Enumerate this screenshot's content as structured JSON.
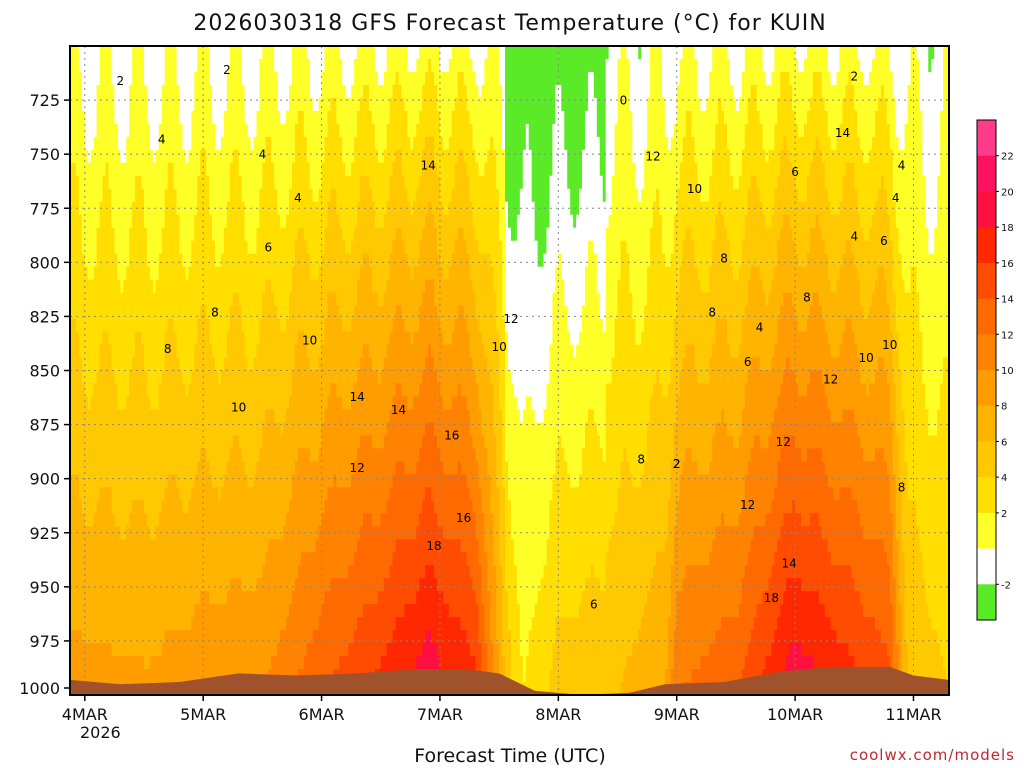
{
  "chart_data": {
    "type": "heatmap",
    "title": "2026030318 GFS Forecast Temperature (°C) for KUIN",
    "xlabel": "Forecast Time (UTC)",
    "ylabel": "",
    "credit": "coolwx.com/models",
    "x_ticks": [
      "4MAR",
      "5MAR",
      "6MAR",
      "7MAR",
      "8MAR",
      "9MAR",
      "10MAR",
      "11MAR"
    ],
    "x_tick_sub": "2026",
    "y_ticks": [
      725,
      750,
      775,
      800,
      825,
      850,
      875,
      900,
      925,
      950,
      975,
      1000
    ],
    "ylim": [
      1000,
      700
    ],
    "xlim_days": [
      3.875,
      11.3
    ],
    "colorbar": {
      "levels": [
        -4,
        -2,
        0,
        2,
        4,
        6,
        8,
        10,
        12,
        14,
        16,
        18,
        20,
        22,
        24
      ],
      "labels": [
        -2,
        2,
        4,
        6,
        8,
        10,
        12,
        14,
        16,
        18,
        20,
        22
      ],
      "colors": [
        "#5aea28",
        "#ffffff",
        "#ffff28",
        "#ffde00",
        "#ffc800",
        "#ffb400",
        "#ff9c00",
        "#ff8200",
        "#ff6a00",
        "#ff4c00",
        "#ff2800",
        "#ff1040",
        "#ff1060",
        "#ff3c8c"
      ]
    },
    "contour_labels": [
      "2",
      "2",
      "4",
      "4",
      "4",
      "6",
      "8",
      "8",
      "10",
      "10",
      "12",
      "14",
      "14",
      "16",
      "18",
      "16",
      "18",
      "14",
      "12",
      "12",
      "12",
      "10",
      "10",
      "8",
      "8",
      "6",
      "4",
      "4",
      "2",
      "0",
      "8",
      "6",
      "4",
      "8",
      "10",
      "12",
      "14",
      "6",
      "4",
      "2",
      "2",
      "6",
      "8",
      "10",
      "12",
      "14"
    ],
    "surface": "terrain"
  }
}
